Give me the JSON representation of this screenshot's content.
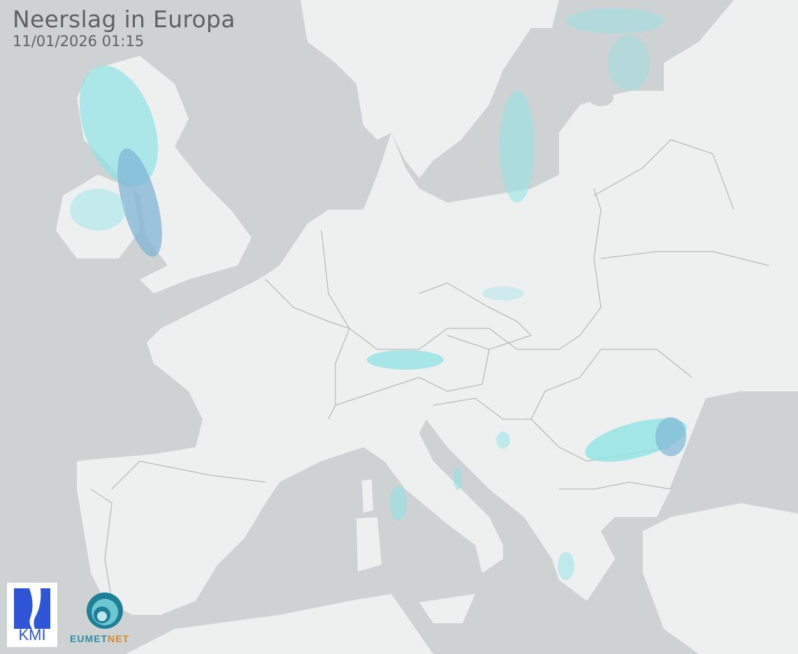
{
  "header": {
    "title": "Neerslag in Europa",
    "timestamp": "11/01/2026 01:15"
  },
  "logos": {
    "kmi": "KMI",
    "eumetnet_a": "EUMET",
    "eumetnet_b": "NET"
  },
  "colors": {
    "sea": "#cfd2d3",
    "land": "#eef0f0",
    "border": "#a9acae",
    "precip_light": "#8fe3e6",
    "precip_moderate": "#7fb6d6"
  }
}
